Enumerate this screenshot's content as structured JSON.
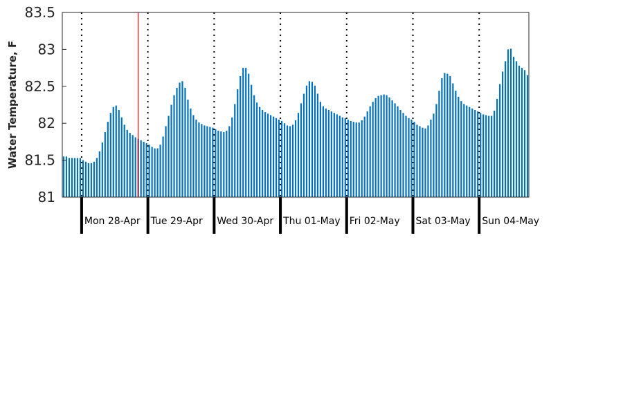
{
  "chart_data": {
    "type": "bar",
    "title": "",
    "xlabel": "",
    "ylabel": "Water Temperature, F",
    "ylim": [
      81,
      83.5
    ],
    "yticks": [
      "81",
      "81.5",
      "82",
      "82.5",
      "83",
      "83.5"
    ],
    "bar_color": "#0072bd",
    "marker_color": "#ff0000",
    "grid": false,
    "day_labels": [
      "Mon 28-Apr",
      "Tue 29-Apr",
      "Wed 30-Apr",
      "Thu 01-May",
      "Fri 02-May",
      "Sat 03-May",
      "Sun 04-May"
    ],
    "hourly_values": [
      81.55,
      81.55,
      81.53,
      81.53,
      81.53,
      81.53,
      81.53,
      81.5,
      81.48,
      81.46,
      81.46,
      81.48,
      81.53,
      81.62,
      81.74,
      81.88,
      82.02,
      82.14,
      82.22,
      82.24,
      82.18,
      82.08,
      81.98,
      81.91,
      81.87,
      81.84,
      81.81,
      81.79,
      81.77,
      81.75,
      81.73,
      81.71,
      81.68,
      81.66,
      81.66,
      81.71,
      81.82,
      81.96,
      82.1,
      82.25,
      82.38,
      82.48,
      82.55,
      82.57,
      82.48,
      82.32,
      82.2,
      82.11,
      82.05,
      82.01,
      81.99,
      81.97,
      81.96,
      81.95,
      81.94,
      81.92,
      81.9,
      81.89,
      81.88,
      81.9,
      81.96,
      82.08,
      82.26,
      82.46,
      82.64,
      82.75,
      82.75,
      82.67,
      82.52,
      82.38,
      82.28,
      82.22,
      82.18,
      82.15,
      82.13,
      82.11,
      82.09,
      82.07,
      82.05,
      82.03,
      82.0,
      81.97,
      81.96,
      81.98,
      82.04,
      82.14,
      82.27,
      82.4,
      82.51,
      82.57,
      82.56,
      82.51,
      82.4,
      82.29,
      82.23,
      82.2,
      82.18,
      82.16,
      82.14,
      82.12,
      82.1,
      82.08,
      82.07,
      82.05,
      82.03,
      82.02,
      82.01,
      82.01,
      82.04,
      82.09,
      82.16,
      82.23,
      82.29,
      82.34,
      82.37,
      82.38,
      82.39,
      82.38,
      82.35,
      82.31,
      82.27,
      82.23,
      82.18,
      82.14,
      82.1,
      82.07,
      82.05,
      82.02,
      81.98,
      81.96,
      81.94,
      81.93,
      81.97,
      82.05,
      82.13,
      82.26,
      82.44,
      82.61,
      82.68,
      82.67,
      82.64,
      82.54,
      82.44,
      82.36,
      82.3,
      82.26,
      82.24,
      82.22,
      82.2,
      82.18,
      82.16,
      82.14,
      82.12,
      82.11,
      82.1,
      82.1,
      82.17,
      82.33,
      82.53,
      82.7,
      82.84,
      83.0,
      83.01,
      82.9,
      82.84,
      82.78,
      82.75,
      82.72,
      82.65
    ],
    "current_time_index": 27.5
  }
}
